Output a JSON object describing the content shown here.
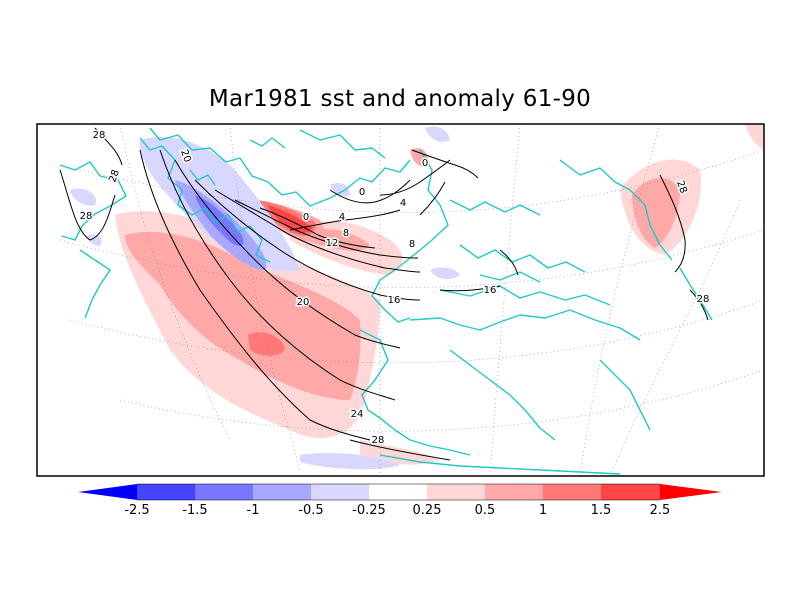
{
  "title": "Mar1981 sst and anomaly 61-90",
  "colorbar": {
    "labels": [
      "-2.5",
      "-1.5",
      "-1",
      "-0.5",
      "-0.25",
      "0.25",
      "0.5",
      "1",
      "1.5",
      "2.5"
    ],
    "colors": [
      "#0000ff",
      "#4646ff",
      "#7878ff",
      "#a8a8ff",
      "#d7d7ff",
      "#ffffff",
      "#ffd7d7",
      "#ffa8a8",
      "#ff7878",
      "#ff4646",
      "#ff0000"
    ]
  },
  "contour_labels": [
    "28",
    "28",
    "28",
    "20",
    "20",
    "0",
    "0",
    "4",
    "4",
    "0",
    "8",
    "12",
    "16",
    "8",
    "16",
    "24",
    "28",
    "28",
    "28"
  ],
  "colors": {
    "coast": "#20c8c8",
    "contour": "#000000",
    "grid": "#888888"
  }
}
